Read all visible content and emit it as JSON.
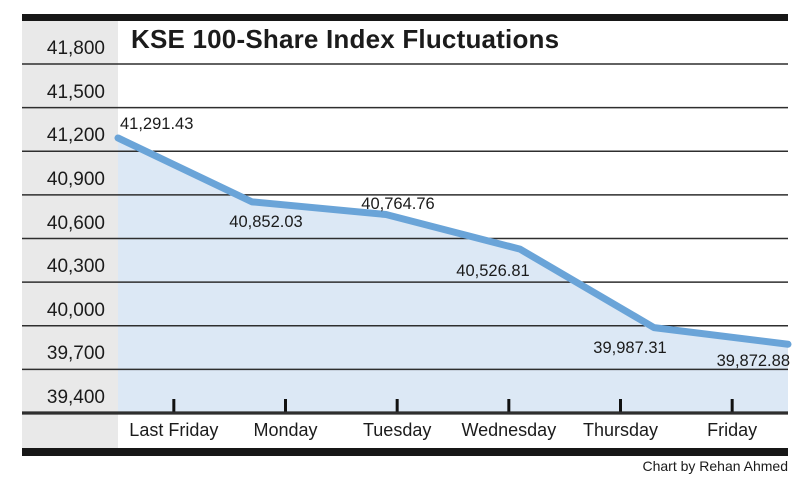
{
  "page": {
    "credit": "Chart by Rehan Ahmed"
  },
  "chart_data": {
    "type": "area",
    "title": "KSE 100-Share Index Fluctuations",
    "categories": [
      "Last Friday",
      "Monday",
      "Tuesday",
      "Wednesday",
      "Thursday",
      "Friday"
    ],
    "values": [
      41291.43,
      40852.03,
      40764.76,
      40526.81,
      39987.31,
      39872.88
    ],
    "point_labels": [
      "41,291.43",
      "40,852.03",
      "40,764.76",
      "40,526.81",
      "39,987.31",
      "39,872.88"
    ],
    "ytick_values": [
      41800,
      41500,
      41200,
      40900,
      40600,
      40300,
      40000,
      39700,
      39400
    ],
    "ytick_labels": [
      "41,800",
      "41,500",
      "41,200",
      "40,900",
      "40,600",
      "40,300",
      "40,000",
      "39,700",
      "39,400"
    ],
    "ylim": [
      39400,
      41800
    ],
    "xlabel": "",
    "ylabel": "",
    "grid": true,
    "legend": false,
    "point_label_positions": [
      "above-left",
      "below",
      "above",
      "below",
      "below",
      "below-right"
    ],
    "colors": {
      "line": "#6aa4d8",
      "area_fill": "#dce8f5",
      "label_column_bg": "#e9e9e9",
      "gridline": "#2e2e2e",
      "frame_bar": "#171717",
      "text": "#1b1b1b"
    }
  }
}
